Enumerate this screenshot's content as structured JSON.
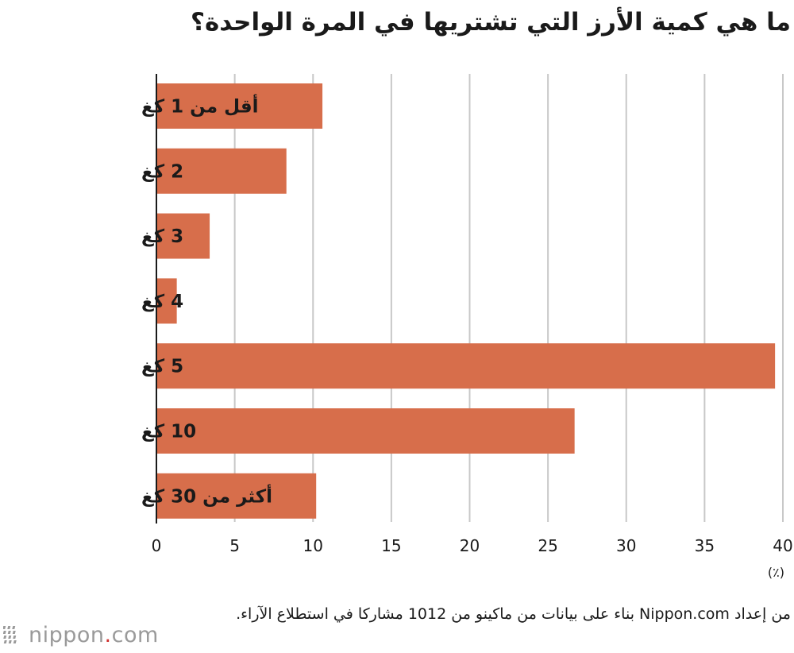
{
  "chart_data": {
    "type": "bar",
    "orientation": "horizontal",
    "title": "ما هي كمية الأرز التي تشتريها في المرة الواحدة؟",
    "categories": [
      "أقل من 1 كغ",
      "2 كغ",
      "3 كغ",
      "4 كغ",
      "5 كغ",
      "10 كغ",
      "أكثر من 30 كغ"
    ],
    "values": [
      10.6,
      8.3,
      3.4,
      1.3,
      39.5,
      26.7,
      10.2
    ],
    "xlim": [
      0,
      40
    ],
    "xticks": [
      0,
      5,
      10,
      15,
      20,
      25,
      30,
      35,
      40
    ],
    "xunit": "(٪)",
    "grid": true,
    "legend": "none",
    "bar_color": "#d76e4b",
    "grid_color": "#c8c8c8",
    "source": "من إعداد Nippon.com بناء على بيانات من ماكينو من 1012 مشاركا في استطلاع الآراء."
  },
  "logo": {
    "prefix": "nippon",
    "dot": ".",
    "suffix": "com",
    "mark_icon": "nippon-slash-mark-icon",
    "text_color": "#9a9a9a",
    "accent_color": "#d0302e"
  }
}
